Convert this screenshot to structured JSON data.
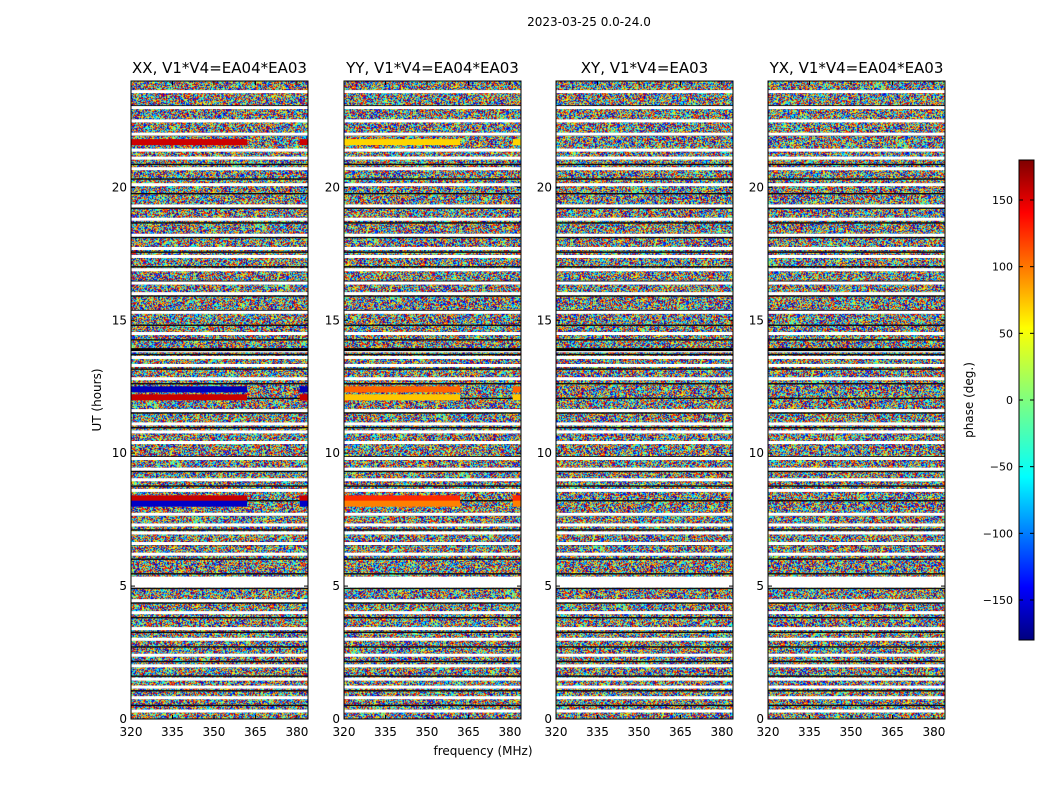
{
  "figure_title": "2023-03-25 0.0-24.0",
  "chart_data": {
    "type": "heatmap",
    "suptitle": "2023-03-25 0.0-24.0",
    "xlabel": "frequency (MHz)",
    "ylabel": "UT (hours)",
    "xlim": [
      320,
      384
    ],
    "ylim": [
      0,
      24
    ],
    "xticks": [
      "320",
      "335",
      "350",
      "365",
      "380"
    ],
    "yticks": [
      "0",
      "5",
      "10",
      "15",
      "20"
    ],
    "panels": [
      {
        "title": "XX, V1*V4=EA04*EA03",
        "features": [
          {
            "ut": 21.7,
            "phase": 170,
            "freq_end": 362
          },
          {
            "ut": 12.4,
            "phase": -160,
            "freq_end": 362
          },
          {
            "ut": 12.1,
            "phase": 175,
            "freq_end": 362
          },
          {
            "ut": 8.3,
            "phase": 175,
            "freq_end": 362
          },
          {
            "ut": 8.1,
            "phase": -155,
            "freq_end": 362
          }
        ]
      },
      {
        "title": "YY, V1*V4=EA04*EA03",
        "features": [
          {
            "ut": 21.7,
            "phase": 60,
            "freq_end": 362
          },
          {
            "ut": 12.4,
            "phase": 100,
            "freq_end": 362
          },
          {
            "ut": 12.1,
            "phase": 65,
            "freq_end": 362
          },
          {
            "ut": 8.3,
            "phase": 120,
            "freq_end": 362
          },
          {
            "ut": 8.1,
            "phase": 90,
            "freq_end": 362
          }
        ]
      },
      {
        "title": "XY, V1*V4=EA03",
        "features": []
      },
      {
        "title": "YX, V1*V4=EA04*EA03",
        "features": []
      }
    ],
    "flagged_ut": [
      0.3,
      0.8,
      1.2,
      1.5,
      2.0,
      2.4,
      3.0,
      3.4,
      4.0,
      4.45,
      5.0,
      5.15,
      5.3,
      6.2,
      6.6,
      7.0,
      7.3,
      7.7,
      8.6,
      9.0,
      9.4,
      9.8,
      10.4,
      10.8,
      11.1,
      11.6,
      12.8,
      13.3,
      13.6,
      13.85,
      14.5,
      15.3,
      16.0,
      16.4,
      16.9,
      17.4,
      17.7,
      18.2,
      18.8,
      19.3,
      20.1,
      20.7,
      21.1,
      21.4,
      22.0,
      22.5,
      23.0,
      23.6
    ],
    "colorbar": {
      "label": "phase (deg.)",
      "range": [
        -180,
        180
      ],
      "ticks": [
        "150",
        "100",
        "50",
        "0",
        "−50",
        "−100",
        "−150"
      ],
      "colormap": "jet"
    }
  },
  "colors": {
    "jet": [
      "#00007f",
      "#0000ff",
      "#007fff",
      "#00ffff",
      "#7fff7f",
      "#ffff00",
      "#ff7f00",
      "#ff0000",
      "#7f0000"
    ]
  }
}
